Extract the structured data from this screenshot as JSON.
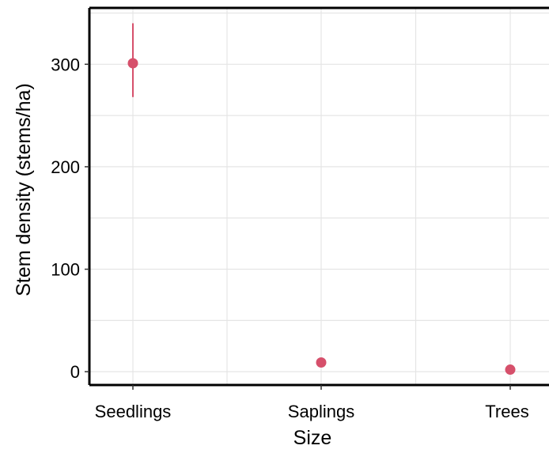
{
  "chart_data": {
    "type": "scatter",
    "title": "",
    "xlabel": "Size",
    "ylabel": "Stem density (stems/ha)",
    "categories": [
      "Seedlings",
      "Saplings",
      "Trees"
    ],
    "values": [
      301,
      9,
      2
    ],
    "error_low": [
      268,
      7,
      1
    ],
    "error_high": [
      340,
      11,
      3
    ],
    "ylim": [
      -13,
      355
    ],
    "yticks": [
      0,
      100,
      200,
      300
    ],
    "grid": true,
    "point_color": "#d6506b",
    "grid_color": "#e5e5e5"
  }
}
